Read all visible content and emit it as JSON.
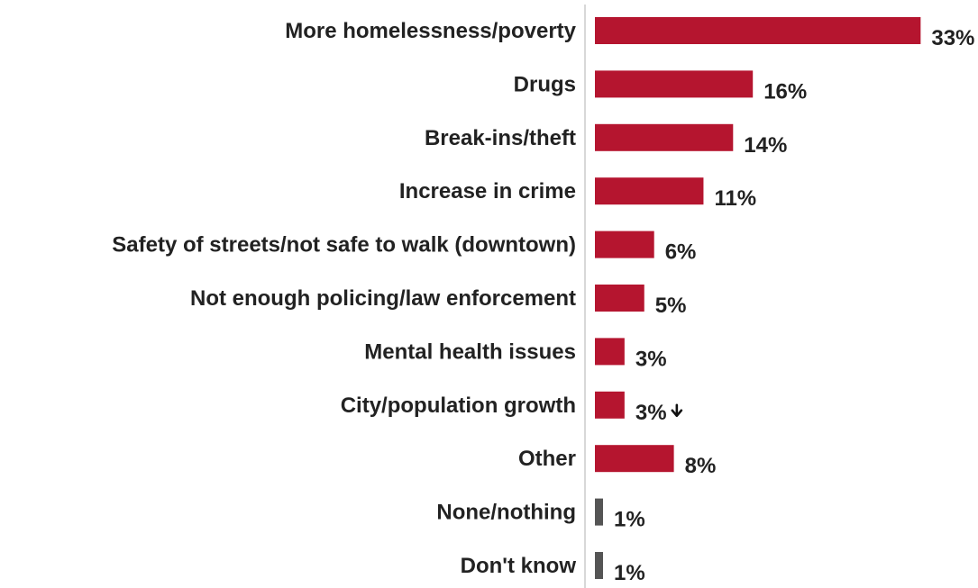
{
  "chart_data": {
    "type": "bar",
    "orientation": "horizontal",
    "title": "",
    "xlabel": "",
    "ylabel": "",
    "xlim": [
      0,
      35
    ],
    "grid": false,
    "legend": "none",
    "categories": [
      "More homelessness/poverty",
      "Drugs",
      "Break-ins/theft",
      "Increase in crime",
      "Safety of streets/not safe to walk (downtown)",
      "Not enough policing/law enforcement",
      "Mental health issues",
      "City/population growth",
      "Other",
      "None/nothing",
      "Don't know"
    ],
    "values": [
      33,
      16,
      14,
      11,
      6,
      5,
      3,
      3,
      8,
      1,
      1
    ],
    "value_labels": [
      "33%",
      "16%",
      "14%",
      "11%",
      "6%",
      "5%",
      "3%",
      "3%",
      "8%",
      "1%",
      "1%"
    ],
    "bar_colors": [
      "#b5152f",
      "#b5152f",
      "#b5152f",
      "#b5152f",
      "#b5152f",
      "#b5152f",
      "#b5152f",
      "#b5152f",
      "#b5152f",
      "#555555",
      "#555555"
    ],
    "annotations": [
      {
        "category": "City/population growth",
        "marker": "down-arrow-icon",
        "meaning": "significant decrease"
      }
    ]
  },
  "colors": {
    "accent": "#b5152f",
    "neutral_bar": "#555555",
    "axis": "#cccccc",
    "text": "#222222"
  }
}
